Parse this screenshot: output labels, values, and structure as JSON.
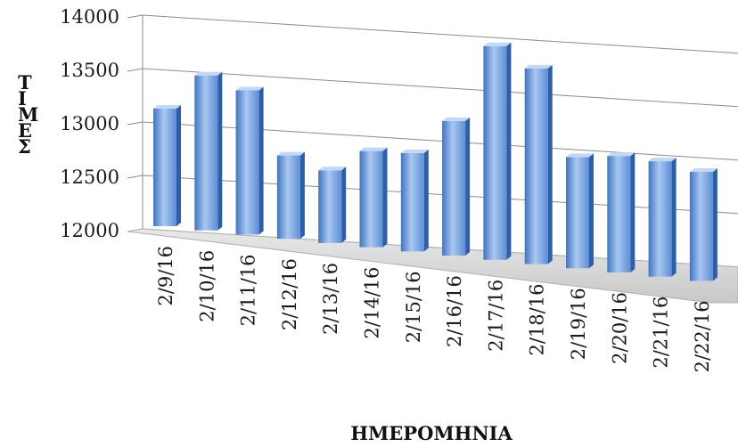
{
  "chart_data": {
    "type": "bar",
    "style": "3d-column",
    "categories": [
      "2/9/16",
      "2/10/16",
      "2/11/16",
      "2/12/16",
      "2/13/16",
      "2/14/16",
      "2/15/16",
      "2/16/16",
      "2/17/16",
      "2/18/16",
      "2/19/16",
      "2/20/16",
      "2/21/16",
      "2/22/16"
    ],
    "values": [
      13100,
      13450,
      13350,
      12780,
      12680,
      12900,
      12920,
      13260,
      14000,
      13830,
      13040,
      13090,
      13080,
      13020
    ],
    "title": "",
    "xlabel": "ΗΜΕΡΟΜΗΝΙΑ",
    "ylabel": "ΤΙΜΕΣ",
    "ylim": [
      12000,
      14000
    ],
    "yticks": [
      "12000",
      "12500",
      "13000",
      "13500",
      "14000"
    ],
    "grid": true,
    "legend": "none",
    "colors": {
      "bar_front": "#5b8fd6",
      "bar_highlight": "#a9c8f0",
      "bar_side": "#2f5ea8",
      "bar_top": "#c3d8f5",
      "floor": "#d9d9d9",
      "gridline": "#8c8c8c"
    }
  }
}
